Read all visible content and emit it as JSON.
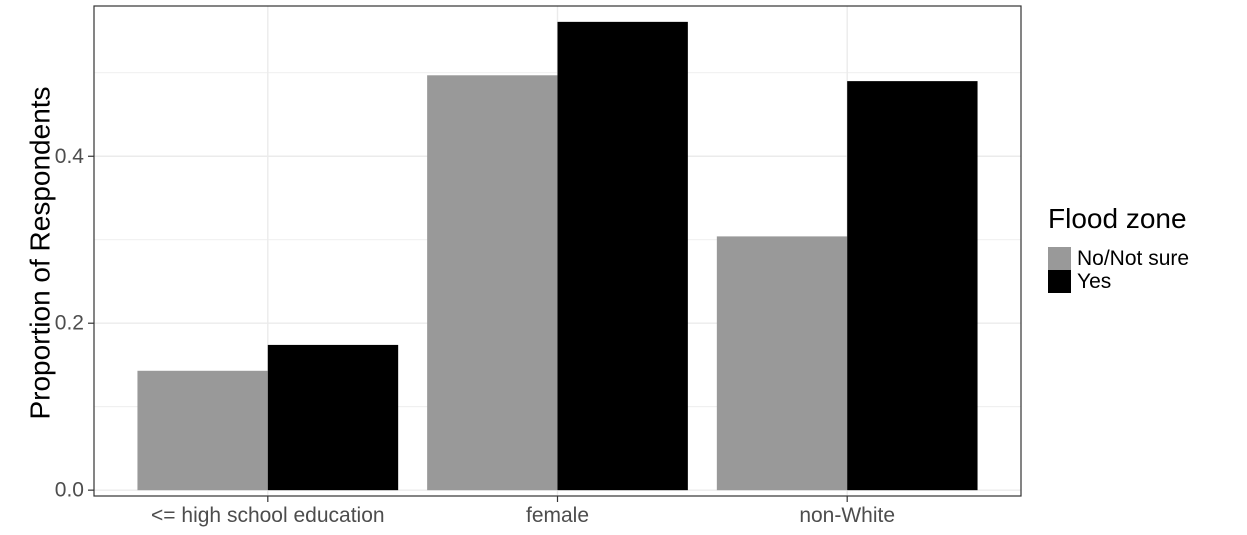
{
  "chart_data": {
    "type": "bar",
    "title": "",
    "xlabel": "",
    "ylabel": "Proportion of Respondents",
    "categories": [
      "<= high school education",
      "female",
      "non-White"
    ],
    "series": [
      {
        "name": "No/Not sure",
        "color": "#999999",
        "values": [
          0.143,
          0.497,
          0.304
        ]
      },
      {
        "name": "Yes",
        "color": "#000000",
        "values": [
          0.174,
          0.561,
          0.49
        ]
      }
    ],
    "ylim": [
      -0.007,
      0.58
    ],
    "yticks": [
      0.0,
      0.2,
      0.4
    ],
    "ytick_labels": [
      "0.0",
      "0.2",
      "0.4"
    ],
    "grid": true,
    "legend": {
      "title": "Flood zone",
      "placement": "right"
    }
  }
}
